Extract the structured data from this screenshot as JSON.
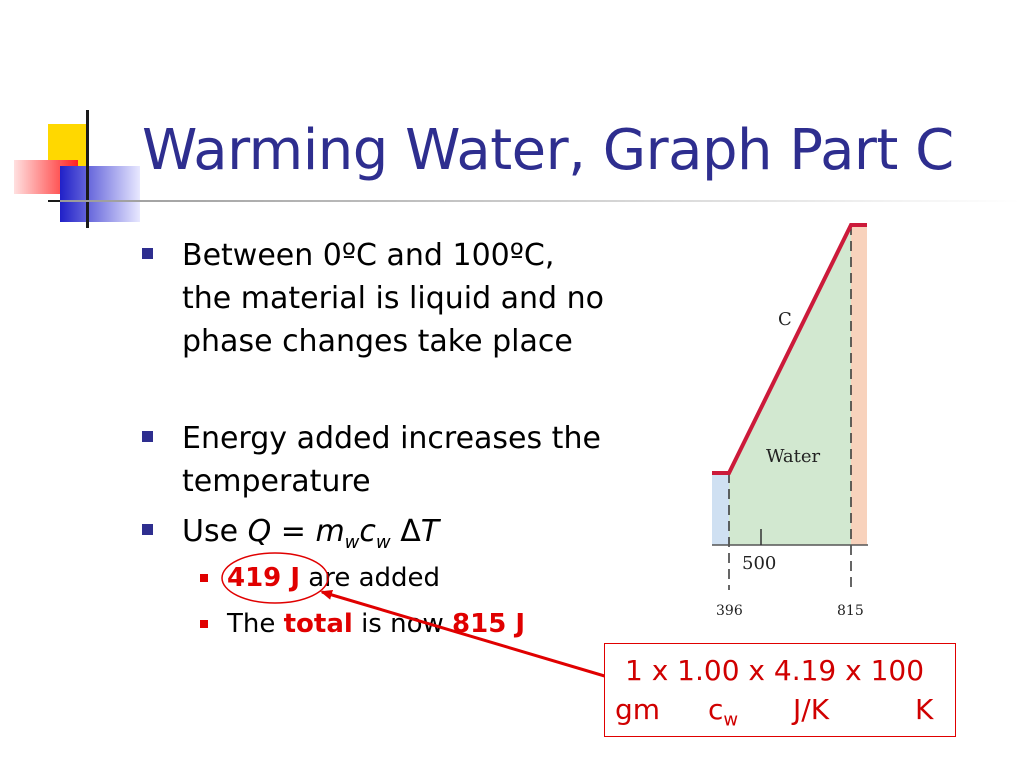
{
  "slide": {
    "title": "Warming Water, Graph Part C",
    "bullets": [
      "Between 0ºC and 100ºC, the material is liquid and no phase changes take place",
      "Energy added increases the temperature"
    ],
    "use_bullet": {
      "prefix": "Use",
      "Q": "Q",
      "eq": " = ",
      "m": "m",
      "m_sub": "w",
      "c": "c",
      "c_sub": "w",
      "delta": "Δ",
      "T": "T"
    },
    "sub_bullets": {
      "first": {
        "value": "419 J",
        "rest": " are added"
      },
      "second": {
        "pre": "The ",
        "total": "total",
        "mid": " is now ",
        "value": "815 J"
      }
    }
  },
  "figure": {
    "curve_label": "C",
    "region_label": "Water",
    "axis_tick_label": "500",
    "x_labels": [
      "396",
      "815"
    ]
  },
  "calc_box": {
    "line1": "1 x 1.00 x 4.19 x 100",
    "units": {
      "gm": "gm",
      "c": "c",
      "c_sub": "w",
      "jk": "J/K",
      "k": "K"
    }
  },
  "colors": {
    "title": "#2e2e8f",
    "highlight_red": "#e00000",
    "water_region": "#d2e8d0",
    "ice_region": "#cfe0f2",
    "steam_region": "#f8d2bc",
    "curve": "#cc1a3a"
  }
}
